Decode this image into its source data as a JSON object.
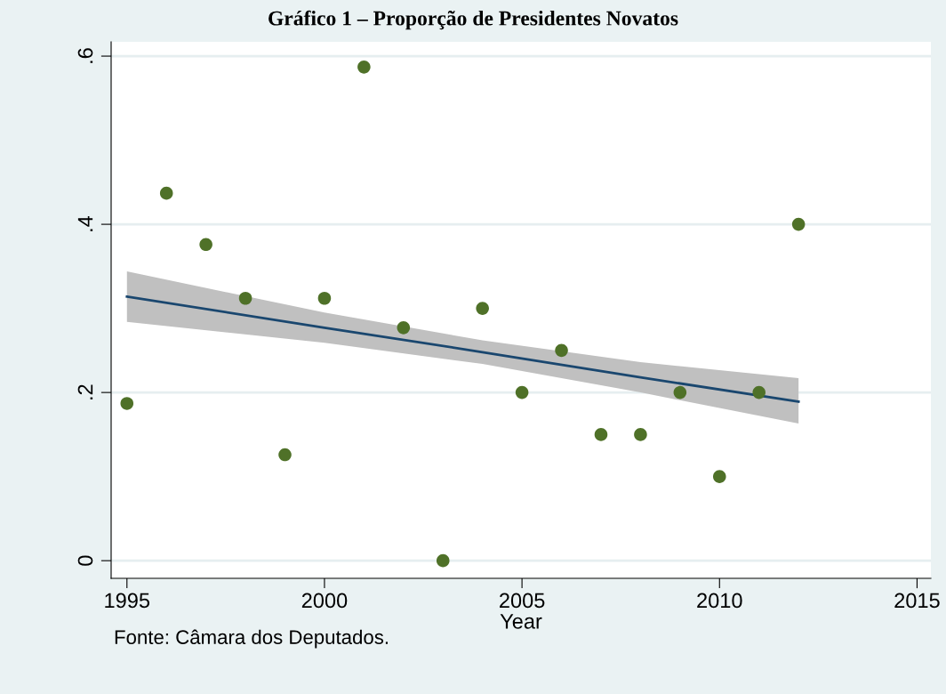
{
  "chart_data": {
    "type": "scatter",
    "title": "Gráfico 1 – Proporção de Presidentes Novatos",
    "xlabel": "Year",
    "annotations": [
      "Fonte: Câmara dos Deputados."
    ],
    "xlim": [
      1994.6,
      2015.35
    ],
    "xticks": [
      1995,
      2000,
      2005,
      2010,
      2015
    ],
    "ylim": [
      -0.021,
      0.617
    ],
    "yticks": [
      {
        "value": 0,
        "label": "0"
      },
      {
        "value": 0.2,
        "label": ".2"
      },
      {
        "value": 0.4,
        "label": ".4"
      },
      {
        "value": 0.6,
        "label": ".6"
      }
    ],
    "grid": "y",
    "series": [
      {
        "marker": "circle",
        "color": "#4f7128",
        "x": [
          1995,
          1996,
          1997,
          1998,
          1999,
          2000,
          2001,
          2002,
          2003,
          2004,
          2005,
          2006,
          2007,
          2008,
          2009,
          2010,
          2011,
          2012
        ],
        "values": [
          0.187,
          0.437,
          0.376,
          0.312,
          0.126,
          0.312,
          0.587,
          0.277,
          0,
          0.3,
          0.2,
          0.25,
          0.15,
          0.15,
          0.2,
          0.1,
          0.2,
          0.4
        ]
      },
      {
        "type": "line",
        "color": "#1a476f",
        "x": [
          1995,
          2000,
          2004,
          2008,
          2012
        ],
        "values": [
          0.314,
          0.277,
          0.248,
          0.218,
          0.189
        ],
        "lower": [
          0.284,
          0.259,
          0.234,
          0.2,
          0.163
        ],
        "upper": [
          0.344,
          0.295,
          0.262,
          0.236,
          0.217
        ]
      }
    ]
  }
}
